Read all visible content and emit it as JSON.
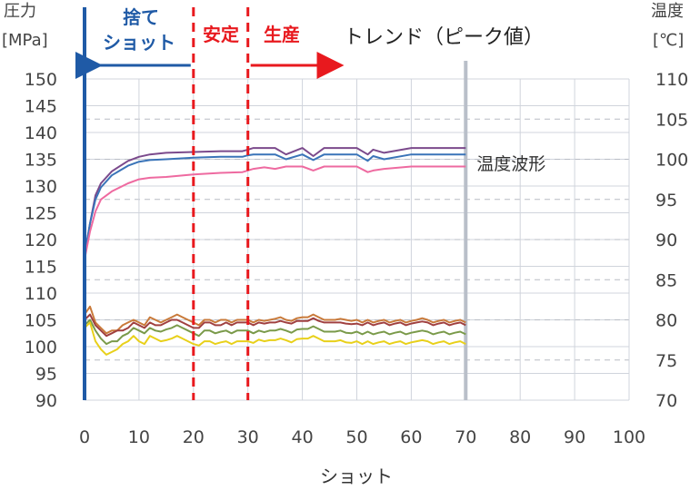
{
  "chart_data": {
    "type": "line",
    "title": "トレンド（ピーク値）",
    "xlabel": "ショット",
    "ylabel_left_line1": "圧力",
    "ylabel_left_line2": "[MPa]",
    "ylabel_right_line1": "温度",
    "ylabel_right_line2": "[℃]",
    "xlim": [
      0,
      100
    ],
    "x_ticks": [
      0,
      10,
      20,
      30,
      40,
      50,
      60,
      70,
      80,
      90,
      100
    ],
    "ylim_left": [
      90,
      150
    ],
    "y_ticks_left": [
      90,
      95,
      100,
      105,
      110,
      115,
      120,
      125,
      130,
      135,
      140,
      145,
      150
    ],
    "ylim_right": [
      70,
      110
    ],
    "y_ticks_right": [
      70,
      75,
      80,
      85,
      90,
      95,
      100,
      105,
      110
    ],
    "grid": true,
    "phases": [
      {
        "label_lines": [
          "捨て",
          "ショット"
        ],
        "color": "#1f5aa6",
        "x_start": 0,
        "x_end": 20
      },
      {
        "label_lines": [
          "安定"
        ],
        "color": "#e8191e",
        "x_start": 20,
        "x_end": 30
      },
      {
        "label_lines": [
          "生産"
        ],
        "color": "#e8191e",
        "x_start": 30,
        "x_end": 48
      }
    ],
    "phase_lines": [
      {
        "x": 0,
        "color": "#1f5aa6",
        "style": "solid"
      },
      {
        "x": 20,
        "color": "#e8191e",
        "style": "dashed"
      },
      {
        "x": 30,
        "color": "#e8191e",
        "style": "dashed"
      }
    ],
    "current_marker_x": 70,
    "annotation": {
      "text": "温度波形",
      "x": 72,
      "y_right": 99.5
    },
    "series": [
      {
        "color": "#7b4a8c",
        "axis": "right",
        "x": [
          0,
          1,
          2,
          3,
          5,
          8,
          10,
          12,
          15,
          20,
          25,
          29,
          30,
          31,
          35,
          37,
          40,
          42,
          44,
          47,
          50,
          52,
          53,
          55,
          60,
          62,
          65,
          70
        ],
        "values": [
          88,
          92,
          95.5,
          97,
          98.5,
          99.8,
          100.3,
          100.6,
          100.8,
          100.9,
          101,
          101,
          101.2,
          101.4,
          101.4,
          100.6,
          101.4,
          100.4,
          101.4,
          101.4,
          101.4,
          100.6,
          101.2,
          100.8,
          101.4,
          101.4,
          101.4,
          101.4
        ]
      },
      {
        "color": "#3a74b8",
        "axis": "right",
        "x": [
          0,
          1,
          2,
          3,
          5,
          8,
          10,
          12,
          15,
          20,
          25,
          29,
          30,
          31,
          35,
          37,
          40,
          42,
          44,
          47,
          50,
          52,
          53,
          55,
          60,
          62,
          65,
          70
        ],
        "values": [
          88,
          92,
          95,
          96.5,
          98,
          99.2,
          99.7,
          99.9,
          100,
          100.2,
          100.3,
          100.3,
          100.5,
          100.6,
          100.6,
          100,
          100.6,
          99.9,
          100.6,
          100.6,
          100.6,
          99.8,
          100.4,
          100,
          100.6,
          100.6,
          100.6,
          100.6
        ]
      },
      {
        "color": "#ee6aa0",
        "axis": "right",
        "x": [
          0,
          1,
          2,
          3,
          5,
          8,
          10,
          12,
          15,
          20,
          25,
          29,
          30,
          31,
          33,
          35,
          37,
          40,
          42,
          44,
          47,
          50,
          52,
          53,
          55,
          60,
          62,
          65,
          70
        ],
        "values": [
          87.5,
          91,
          93.5,
          95,
          96,
          97,
          97.5,
          97.7,
          97.8,
          98.1,
          98.3,
          98.4,
          98.6,
          98.8,
          99,
          98.8,
          99.1,
          99.1,
          98.6,
          99.1,
          99.1,
          99.1,
          98.4,
          98.6,
          98.8,
          99.1,
          99.1,
          99.1,
          99.1
        ]
      },
      {
        "color": "#c97a3a",
        "axis": "left",
        "x": [
          0,
          1,
          2,
          3,
          4,
          5,
          6,
          7,
          8,
          9,
          10,
          11,
          12,
          13,
          14,
          15,
          16,
          17,
          18,
          19,
          20,
          21,
          22,
          23,
          24,
          25,
          26,
          27,
          28,
          29,
          30,
          31,
          32,
          33,
          34,
          35,
          36,
          37,
          38,
          39,
          40,
          41,
          42,
          43,
          44,
          45,
          46,
          47,
          48,
          49,
          50,
          51,
          52,
          53,
          54,
          55,
          56,
          57,
          58,
          59,
          60,
          61,
          62,
          63,
          64,
          65,
          66,
          67,
          68,
          69,
          70
        ],
        "values": [
          106,
          107.5,
          104.5,
          103.5,
          102.5,
          103,
          103,
          104,
          104.5,
          105,
          104.5,
          104,
          105.5,
          105,
          104.5,
          105,
          105.5,
          106,
          105.5,
          105,
          104.5,
          104,
          105,
          105,
          104.5,
          105,
          105,
          104.5,
          105,
          105,
          105,
          104.5,
          105,
          104.8,
          105,
          105.2,
          105.5,
          105,
          104.8,
          105.3,
          105.5,
          105.5,
          106,
          105.5,
          105,
          105,
          105,
          105.2,
          105,
          104.8,
          105,
          104.5,
          105,
          104.5,
          104.8,
          105,
          104.5,
          104.8,
          105,
          104.5,
          104.8,
          105,
          105.3,
          105,
          104.5,
          104.8,
          105,
          104.5,
          104.8,
          105,
          104.5
        ]
      },
      {
        "color": "#a04040",
        "axis": "left",
        "x": [
          0,
          1,
          2,
          3,
          4,
          5,
          6,
          7,
          8,
          9,
          10,
          11,
          12,
          13,
          14,
          15,
          16,
          17,
          18,
          19,
          20,
          21,
          22,
          23,
          24,
          25,
          26,
          27,
          28,
          29,
          30,
          31,
          32,
          33,
          34,
          35,
          36,
          37,
          38,
          39,
          40,
          41,
          42,
          43,
          44,
          45,
          46,
          47,
          48,
          49,
          50,
          51,
          52,
          53,
          54,
          55,
          56,
          57,
          58,
          59,
          60,
          61,
          62,
          63,
          64,
          65,
          66,
          67,
          68,
          69,
          70
        ],
        "values": [
          105,
          106,
          104,
          103,
          102,
          102.5,
          103,
          103,
          103.5,
          104.5,
          104,
          103.5,
          104.5,
          104,
          104,
          104.5,
          105,
          105,
          104.5,
          104,
          103.5,
          103.5,
          104.5,
          104.5,
          104,
          104,
          104.5,
          104,
          104.5,
          104.5,
          104.5,
          104,
          104.5,
          104.3,
          104.5,
          104.5,
          104.8,
          104.5,
          104.3,
          104.8,
          104.8,
          104.8,
          105.3,
          104.8,
          104.5,
          104.5,
          104.5,
          104.5,
          104.3,
          104.2,
          104.3,
          104,
          104.5,
          104,
          104.3,
          104.5,
          104,
          104.3,
          104.5,
          104,
          104.3,
          104.5,
          104.7,
          104.5,
          104,
          104.3,
          104.5,
          104,
          104.3,
          104.5,
          104
        ]
      },
      {
        "color": "#7a9a4a",
        "axis": "left",
        "x": [
          0,
          1,
          2,
          3,
          4,
          5,
          6,
          7,
          8,
          9,
          10,
          11,
          12,
          13,
          14,
          15,
          16,
          17,
          18,
          19,
          20,
          21,
          22,
          23,
          24,
          25,
          26,
          27,
          28,
          29,
          30,
          31,
          32,
          33,
          34,
          35,
          36,
          37,
          38,
          39,
          40,
          41,
          42,
          43,
          44,
          45,
          46,
          47,
          48,
          49,
          50,
          51,
          52,
          53,
          54,
          55,
          56,
          57,
          58,
          59,
          60,
          61,
          62,
          63,
          64,
          65,
          66,
          67,
          68,
          69,
          70
        ],
        "values": [
          104,
          105,
          103,
          101.5,
          100.5,
          101,
          101,
          102,
          102.5,
          103.5,
          103,
          102.5,
          103.5,
          103,
          102.8,
          103.2,
          103.5,
          104,
          103.5,
          103,
          102.5,
          102,
          103,
          103,
          102.5,
          102.8,
          103,
          102.5,
          103,
          103,
          103,
          102.5,
          103,
          102.7,
          103,
          103,
          103.3,
          103,
          102.6,
          103.2,
          103.3,
          103.3,
          103.8,
          103.3,
          102.8,
          102.8,
          102.8,
          103,
          102.6,
          102.5,
          102.8,
          102.3,
          102.8,
          102.3,
          102.6,
          102.8,
          102.3,
          102.6,
          102.8,
          102.3,
          102.6,
          102.8,
          103,
          102.8,
          102.3,
          102.6,
          102.8,
          102.3,
          102.6,
          102.8,
          102.3
        ]
      },
      {
        "color": "#e8d01a",
        "axis": "left",
        "x": [
          0,
          1,
          2,
          3,
          4,
          5,
          6,
          7,
          8,
          9,
          10,
          11,
          12,
          13,
          14,
          15,
          16,
          17,
          18,
          19,
          20,
          21,
          22,
          23,
          24,
          25,
          26,
          27,
          28,
          29,
          30,
          31,
          32,
          33,
          34,
          35,
          36,
          37,
          38,
          39,
          40,
          41,
          42,
          43,
          44,
          45,
          46,
          47,
          48,
          49,
          50,
          51,
          52,
          53,
          54,
          55,
          56,
          57,
          58,
          59,
          60,
          61,
          62,
          63,
          64,
          65,
          66,
          67,
          68,
          69,
          70
        ],
        "values": [
          103.5,
          104.5,
          101,
          99.5,
          98.5,
          99,
          99.5,
          100.5,
          101,
          102,
          101,
          100.5,
          102,
          101.5,
          101,
          101.2,
          101.5,
          102,
          101.5,
          101,
          100.5,
          100.2,
          101,
          101,
          100.5,
          100.8,
          101,
          100.5,
          101,
          101,
          101,
          100.7,
          101.3,
          101,
          101.2,
          101.2,
          101.5,
          101.2,
          100.8,
          101.4,
          101.5,
          101.5,
          102,
          101.5,
          101,
          101,
          101,
          101.2,
          100.8,
          100.7,
          101,
          100.5,
          101,
          100.5,
          100.8,
          101,
          100.5,
          100.8,
          101,
          100.5,
          100.8,
          101,
          101.2,
          101,
          100.5,
          100.8,
          101,
          100.5,
          100.8,
          101,
          100.5
        ]
      }
    ]
  }
}
